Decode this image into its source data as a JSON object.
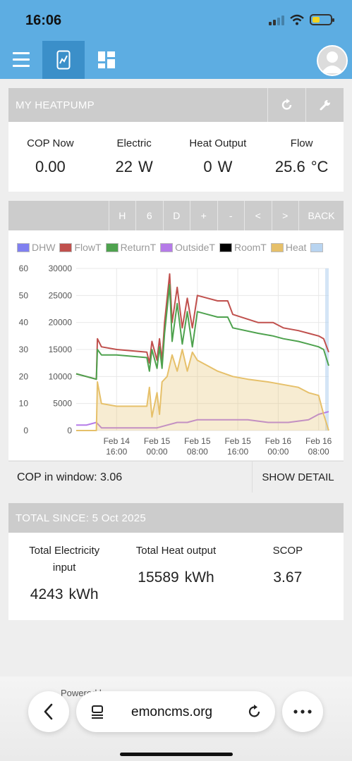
{
  "status": {
    "time": "16:06"
  },
  "browser": {
    "url": "emoncms.org",
    "powered_text": "Powered by"
  },
  "panel": {
    "title": "MY HEATPUMP"
  },
  "stats": [
    {
      "label": "COP Now",
      "value": "0.00",
      "unit": ""
    },
    {
      "label": "Electric",
      "value": "22",
      "unit": "W"
    },
    {
      "label": "Heat Output",
      "value": "0",
      "unit": "W"
    },
    {
      "label": "Flow",
      "value": "25.6",
      "unit": "°C"
    }
  ],
  "toolbar": {
    "buttons": [
      "H",
      "6",
      "D",
      "+",
      "-",
      "<",
      ">"
    ],
    "back": "BACK"
  },
  "legend": [
    {
      "name": "DHW",
      "color": "#8080f0"
    },
    {
      "name": "FlowT",
      "color": "#c0504d"
    },
    {
      "name": "ReturnT",
      "color": "#4ea24e"
    },
    {
      "name": "OutsideT",
      "color": "#b57be8"
    },
    {
      "name": "RoomT",
      "color": "#000000"
    },
    {
      "name": "Heat",
      "color": "#e6c06a"
    },
    {
      "name": "",
      "color": "#b8d4f0"
    }
  ],
  "chart_data": {
    "type": "line",
    "y_left": {
      "ticks": [
        "60",
        "50",
        "40",
        "30",
        "20",
        "10",
        "0"
      ],
      "range": [
        0,
        60
      ]
    },
    "y_right": {
      "ticks": [
        "30000",
        "25000",
        "20000",
        "15000",
        "10000",
        "5000",
        "0"
      ],
      "range": [
        0,
        30000
      ]
    },
    "x_ticks": [
      {
        "l1": "Feb 14",
        "l2": "16:00"
      },
      {
        "l1": "Feb 15",
        "l2": "00:00"
      },
      {
        "l1": "Feb 15",
        "l2": "08:00"
      },
      {
        "l1": "Feb 15",
        "l2": "16:00"
      },
      {
        "l1": "Feb 16",
        "l2": "00:00"
      },
      {
        "l1": "Feb 16",
        "l2": "08:00"
      }
    ],
    "x_range_hours": [
      -8,
      42
    ],
    "series": [
      {
        "name": "FlowT",
        "color": "#c0504d",
        "points": [
          [
            -8,
            21
          ],
          [
            -6,
            20
          ],
          [
            -4,
            19
          ],
          [
            -3.8,
            34
          ],
          [
            -3,
            31
          ],
          [
            0,
            30
          ],
          [
            6,
            29
          ],
          [
            6.5,
            25
          ],
          [
            7,
            33
          ],
          [
            8,
            26
          ],
          [
            8.5,
            34
          ],
          [
            9,
            26
          ],
          [
            9.5,
            40
          ],
          [
            10.5,
            58
          ],
          [
            11,
            40
          ],
          [
            12,
            53
          ],
          [
            13,
            38
          ],
          [
            14,
            49
          ],
          [
            15,
            38
          ],
          [
            16,
            50
          ],
          [
            18,
            49
          ],
          [
            20,
            48
          ],
          [
            22,
            48
          ],
          [
            23,
            43
          ],
          [
            28,
            40
          ],
          [
            31,
            40
          ],
          [
            33,
            38
          ],
          [
            36,
            37
          ],
          [
            38,
            36
          ],
          [
            40,
            35
          ],
          [
            41,
            34
          ],
          [
            42,
            29
          ]
        ]
      },
      {
        "name": "ReturnT",
        "color": "#4ea24e",
        "points": [
          [
            -8,
            21
          ],
          [
            -6,
            20
          ],
          [
            -4,
            19
          ],
          [
            -3.8,
            30
          ],
          [
            -3,
            28
          ],
          [
            0,
            28
          ],
          [
            6,
            27
          ],
          [
            6.5,
            22
          ],
          [
            7,
            30
          ],
          [
            8,
            23
          ],
          [
            8.5,
            31
          ],
          [
            9,
            23
          ],
          [
            9.5,
            36
          ],
          [
            10.5,
            54
          ],
          [
            11,
            33
          ],
          [
            12,
            47
          ],
          [
            13,
            32
          ],
          [
            14,
            44
          ],
          [
            15,
            31
          ],
          [
            16,
            44
          ],
          [
            18,
            43
          ],
          [
            20,
            42
          ],
          [
            22,
            42
          ],
          [
            23,
            38
          ],
          [
            28,
            36
          ],
          [
            31,
            35
          ],
          [
            33,
            34
          ],
          [
            36,
            33
          ],
          [
            38,
            32
          ],
          [
            40,
            31
          ],
          [
            41,
            30
          ],
          [
            42,
            24
          ]
        ]
      },
      {
        "name": "OutsideT",
        "color": "#b57be8",
        "points": [
          [
            -8,
            2
          ],
          [
            -6,
            2
          ],
          [
            -4,
            3
          ],
          [
            -3,
            1
          ],
          [
            0,
            1
          ],
          [
            4,
            1
          ],
          [
            6,
            1
          ],
          [
            8,
            1
          ],
          [
            10,
            2
          ],
          [
            12,
            3
          ],
          [
            14,
            3
          ],
          [
            16,
            4
          ],
          [
            18,
            4
          ],
          [
            20,
            4
          ],
          [
            22,
            4
          ],
          [
            26,
            4
          ],
          [
            30,
            3
          ],
          [
            34,
            3
          ],
          [
            38,
            4
          ],
          [
            40,
            6
          ],
          [
            42,
            7
          ]
        ]
      },
      {
        "name": "Heat",
        "color": "#e6c06a",
        "area": true,
        "points": [
          [
            -8,
            0
          ],
          [
            -4,
            0
          ],
          [
            -3.8,
            18
          ],
          [
            -3,
            10
          ],
          [
            0,
            9
          ],
          [
            6,
            9
          ],
          [
            6.5,
            16
          ],
          [
            7,
            5
          ],
          [
            8,
            14
          ],
          [
            8.5,
            6
          ],
          [
            9,
            18
          ],
          [
            10,
            20
          ],
          [
            11,
            28
          ],
          [
            12,
            22
          ],
          [
            13,
            30
          ],
          [
            14,
            22
          ],
          [
            15,
            29
          ],
          [
            16,
            26
          ],
          [
            18,
            24
          ],
          [
            20,
            22
          ],
          [
            23,
            20
          ],
          [
            26,
            19
          ],
          [
            30,
            18
          ],
          [
            33,
            17
          ],
          [
            36,
            16
          ],
          [
            38,
            14
          ],
          [
            40,
            13
          ],
          [
            41,
            6
          ],
          [
            42,
            0
          ]
        ]
      }
    ]
  },
  "cop_window": {
    "label": "COP in window:",
    "value": "3.06",
    "detail": "SHOW DETAIL"
  },
  "totals": {
    "title": "TOTAL SINCE: 5 Oct 2025",
    "items": [
      {
        "label_line1": "Total Electricity",
        "label_line2": "input",
        "value": "4243",
        "unit": "kWh"
      },
      {
        "label_line1": "Total Heat output",
        "label_line2": "",
        "value": "15589",
        "unit": "kWh"
      },
      {
        "label_line1": "SCOP",
        "label_line2": "",
        "value": "3.67",
        "unit": ""
      }
    ]
  }
}
